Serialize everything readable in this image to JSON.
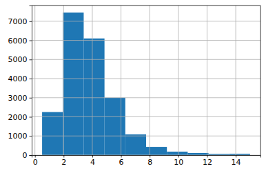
{
  "chart_data": {
    "type": "histogram",
    "bins": [
      0.5,
      1.95,
      3.4,
      4.85,
      6.3,
      7.75,
      9.2,
      10.65,
      12.1,
      13.55,
      15
    ],
    "counts": [
      2250,
      7450,
      6100,
      3000,
      1080,
      430,
      180,
      110,
      60,
      70
    ],
    "color": "#1f77b4",
    "xlim": [
      -0.225,
      15.725
    ],
    "xticks": [
      0,
      2,
      4,
      6,
      8,
      10,
      12,
      14
    ],
    "ylim": [
      0,
      7822
    ],
    "yticks": [
      0,
      1000,
      2000,
      3000,
      4000,
      5000,
      6000,
      7000
    ],
    "grid": true
  }
}
